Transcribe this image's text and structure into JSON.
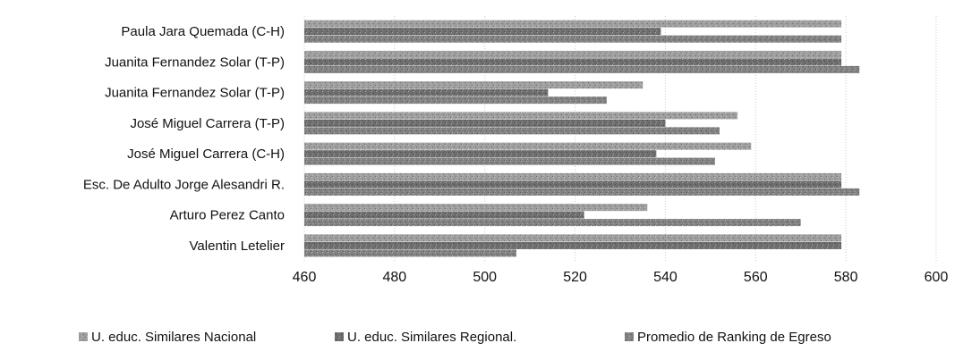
{
  "chart_data": {
    "type": "bar",
    "orientation": "horizontal",
    "categories": [
      "Paula Jara Quemada (C-H)",
      "Juanita Fernandez Solar (T-P)",
      "Juanita Fernandez Solar (T-P)",
      "José Miguel Carrera (T-P)",
      "José Miguel Carrera (C-H)",
      "Esc. De Adulto Jorge Alesandri R.",
      "Arturo Perez Canto",
      "Valentin Letelier"
    ],
    "series": [
      {
        "name": "U. educ. Similares Nacional",
        "values": [
          579,
          579,
          535,
          556,
          559,
          579,
          536,
          579
        ]
      },
      {
        "name": "U. educ. Similares Regional.",
        "values": [
          539,
          579,
          514,
          540,
          538,
          579,
          522,
          579
        ]
      },
      {
        "name": "Promedio de Ranking de Egreso",
        "values": [
          579,
          583,
          527,
          552,
          551,
          583,
          570,
          507
        ]
      }
    ],
    "xlim": [
      460,
      600
    ],
    "xticks": [
      "460",
      "480",
      "500",
      "520",
      "540",
      "560",
      "580",
      "600"
    ],
    "grid": true,
    "legend_position": "bottom",
    "title": "",
    "xlabel": "",
    "ylabel": "",
    "colors": [
      "#9e9e9e",
      "#6e6e6e",
      "#828282"
    ]
  }
}
